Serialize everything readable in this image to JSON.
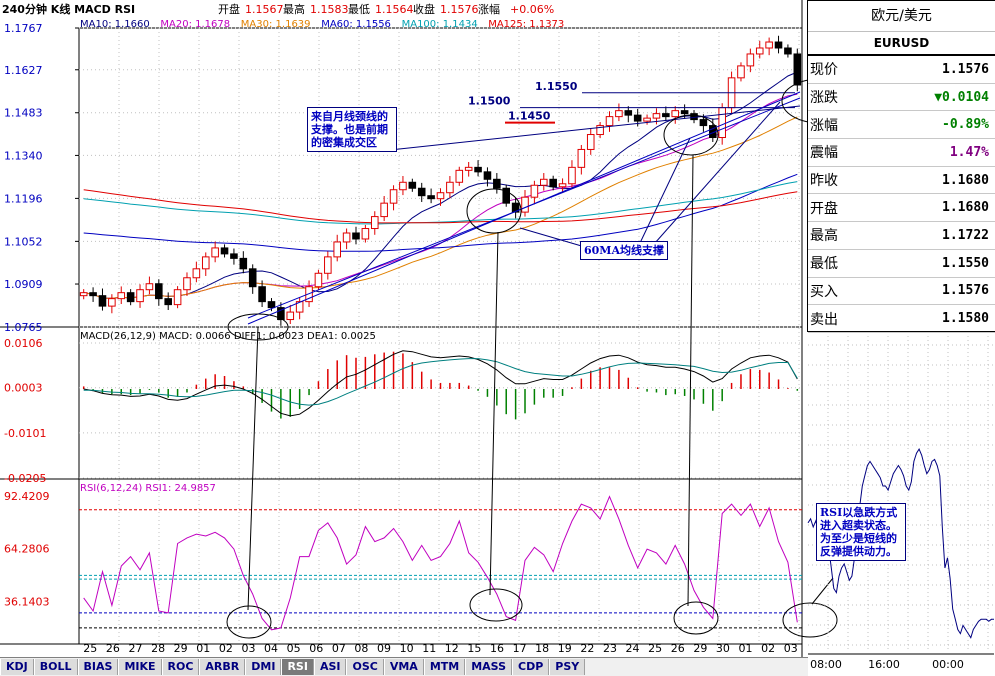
{
  "header": {
    "title": "240分钟 K线 MACD RSI",
    "open_label": "开盘",
    "open": "1.1567",
    "high_label": "最高",
    "high": "1.1583",
    "low_label": "最低",
    "low": "1.1564",
    "close_label": "收盘",
    "close": "1.1576",
    "change_label": "涨幅",
    "change": "+0.06%"
  },
  "ma_legend": [
    {
      "label": "MA10: 1.1660",
      "color": "#000080"
    },
    {
      "label": "MA20: 1.1678",
      "color": "#c000c0"
    },
    {
      "label": "MA30: 1.1639",
      "color": "#e08000"
    },
    {
      "label": "MA60: 1.1556",
      "color": "#0000c0"
    },
    {
      "label": "MA100: 1.1434",
      "color": "#00a0b0"
    },
    {
      "label": "MA125: 1.1373",
      "color": "#e00000"
    }
  ],
  "macd_legend": "MACD(26,12,9) MACD: 0.0066  DIFF1: 0.0023  DEA1: 0.0025",
  "rsi_legend": "RSI(6,12,24) RSI1: 24.9857",
  "colors": {
    "up": "#e00000",
    "down": "#000000",
    "accent": "#0000c0",
    "grid": "#c0c0c0",
    "axis_text": "#0000c0",
    "rsi_line": "#c000c0"
  },
  "chart_data": [
    {
      "type": "candlestick",
      "ylim": [
        1.0765,
        1.1767
      ],
      "yticks": [
        "1.1767",
        "1.1627",
        "1.1483",
        "1.1340",
        "1.1196",
        "1.1052",
        "1.0909",
        "1.0765"
      ],
      "x_labels": [
        "25",
        "26",
        "27",
        "28",
        "29",
        "01",
        "02",
        "03",
        "04",
        "05",
        "06",
        "07",
        "08",
        "09",
        "10",
        "11",
        "12",
        "15",
        "16",
        "17",
        "18",
        "19",
        "22",
        "23",
        "24",
        "25",
        "26",
        "29",
        "30",
        "01",
        "02",
        "03"
      ],
      "levels": [
        {
          "label": "1.1550",
          "value": 1.155
        },
        {
          "label": "1.1500",
          "value": 1.15
        },
        {
          "label": "1.1450",
          "value": 1.145
        }
      ],
      "annotations": [
        "来自月线颈线的支撑。也是前期的密集成交区",
        "60MA均线支撑"
      ],
      "closes": [
        1.088,
        1.087,
        1.0835,
        1.086,
        1.088,
        1.085,
        1.089,
        1.091,
        1.086,
        1.084,
        1.089,
        1.093,
        1.096,
        1.1,
        1.103,
        1.101,
        1.0995,
        1.096,
        1.09,
        1.085,
        1.083,
        1.079,
        1.0815,
        1.085,
        1.09,
        1.0945,
        1.1,
        1.105,
        1.108,
        1.106,
        1.1095,
        1.1135,
        1.118,
        1.1225,
        1.125,
        1.123,
        1.1205,
        1.1195,
        1.1215,
        1.125,
        1.129,
        1.13,
        1.1285,
        1.126,
        1.123,
        1.118,
        1.115,
        1.12,
        1.124,
        1.126,
        1.1235,
        1.1245,
        1.13,
        1.136,
        1.141,
        1.144,
        1.147,
        1.149,
        1.1475,
        1.1455,
        1.1465,
        1.148,
        1.147,
        1.149,
        1.148,
        1.146,
        1.144,
        1.14,
        1.15,
        1.16,
        1.164,
        1.168,
        1.17,
        1.172,
        1.17,
        1.168,
        1.1576
      ]
    },
    {
      "type": "bar_line",
      "name": "MACD",
      "ylim": [
        -0.0205,
        0.0106
      ],
      "yticks": [
        "0.0106",
        "0.0003",
        "-0.0101",
        "-0.0205"
      ],
      "diff": [
        0.0,
        -0.0004,
        -0.001,
        -0.0013,
        -0.0014,
        -0.0017,
        -0.0016,
        -0.0012,
        -0.0016,
        -0.0024,
        -0.0026,
        -0.0022,
        -0.0012,
        -0.0002,
        0.0007,
        0.0009,
        0.0006,
        0.0,
        -0.001,
        -0.0024,
        -0.004,
        -0.0056,
        -0.0062,
        -0.0058,
        -0.0044,
        -0.0026,
        -0.0006,
        0.0012,
        0.0028,
        0.0034,
        0.0044,
        0.0056,
        0.0068,
        0.008,
        0.0088,
        0.0086,
        0.008,
        0.0074,
        0.0072,
        0.0074,
        0.0076,
        0.0074,
        0.0068,
        0.0058,
        0.0044,
        0.0026,
        0.0012,
        0.0012,
        0.0018,
        0.0024,
        0.0022,
        0.0022,
        0.0032,
        0.0046,
        0.006,
        0.007,
        0.0076,
        0.0078,
        0.0072,
        0.0062,
        0.0056,
        0.0054,
        0.005,
        0.005,
        0.0046,
        0.004,
        0.003,
        0.0016,
        0.0024,
        0.0046,
        0.006,
        0.0072,
        0.0076,
        0.0078,
        0.0072,
        0.0062,
        0.0023
      ],
      "dea": [
        -0.0003,
        -0.0003,
        -0.0005,
        -0.0007,
        -0.0008,
        -0.001,
        -0.0011,
        -0.0011,
        -0.0012,
        -0.0014,
        -0.0017,
        -0.0018,
        -0.0017,
        -0.0014,
        -0.001,
        -0.0006,
        -0.0003,
        -0.0003,
        -0.0004,
        -0.0008,
        -0.0014,
        -0.0022,
        -0.003,
        -0.0035,
        -0.0037,
        -0.0035,
        -0.0029,
        -0.0021,
        -0.0011,
        -0.0002,
        0.0007,
        0.0016,
        0.0026,
        0.0037,
        0.0047,
        0.0055,
        0.006,
        0.0063,
        0.0065,
        0.0067,
        0.0069,
        0.007,
        0.007,
        0.0067,
        0.0063,
        0.0055,
        0.0047,
        0.004,
        0.0036,
        0.0034,
        0.0032,
        0.003,
        0.003,
        0.0034,
        0.0039,
        0.0045,
        0.0051,
        0.0056,
        0.0059,
        0.006,
        0.0059,
        0.0058,
        0.0057,
        0.0056,
        0.0054,
        0.0052,
        0.0047,
        0.0041,
        0.0038,
        0.0039,
        0.0043,
        0.0049,
        0.0054,
        0.0059,
        0.0061,
        0.0061,
        0.0025
      ]
    },
    {
      "type": "line",
      "name": "RSI",
      "ylim": [
        15.0,
        95.0
      ],
      "yticks": [
        "92.4209",
        "64.2806",
        "36.1403"
      ],
      "values": [
        38,
        31,
        52,
        34,
        55,
        60,
        53,
        62,
        31,
        30,
        67,
        70,
        72,
        71,
        73,
        70,
        64,
        50,
        40,
        27,
        21,
        22,
        38,
        60,
        60,
        74,
        78,
        70,
        56,
        61,
        76,
        68,
        70,
        75,
        68,
        58,
        66,
        58,
        60,
        67,
        79,
        62,
        57,
        49,
        40,
        28,
        26,
        58,
        65,
        61,
        52,
        67,
        79,
        88,
        86,
        80,
        92,
        80,
        66,
        54,
        64,
        62,
        56,
        66,
        56,
        42,
        33,
        27,
        83,
        88,
        82,
        88,
        76,
        86,
        68,
        57,
        25
      ]
    }
  ],
  "side_panel": {
    "title": "欧元/美元",
    "symbol": "EURUSD",
    "rows": [
      {
        "label": "现价",
        "value": "1.1576",
        "cls": "v-black"
      },
      {
        "label": "涨跌",
        "value": "▼0.0104",
        "cls": "v-green"
      },
      {
        "label": "涨幅",
        "value": "-0.89%",
        "cls": "v-green"
      },
      {
        "label": "震幅",
        "value": "1.47%",
        "cls": "v-purple"
      },
      {
        "label": "昨收",
        "value": "1.1680",
        "cls": "v-black"
      },
      {
        "label": "开盘",
        "value": "1.1680",
        "cls": "v-black"
      },
      {
        "label": "最高",
        "value": "1.1722",
        "cls": "v-black"
      },
      {
        "label": "最低",
        "value": "1.1550",
        "cls": "v-black"
      },
      {
        "label": "买入",
        "value": "1.1576",
        "cls": "v-black"
      },
      {
        "label": "卖出",
        "value": "1.1580",
        "cls": "v-black"
      }
    ]
  },
  "mini_chart": {
    "x_labels": [
      "08:00",
      "16:00",
      "00:00"
    ],
    "values": [
      0.62,
      0.64,
      0.6,
      0.63,
      0.58,
      0.56,
      0.52,
      0.52,
      0.5,
      0.4,
      0.3,
      0.28,
      0.36,
      0.4,
      0.42,
      0.38,
      0.34,
      0.36,
      0.45,
      0.55,
      0.7,
      0.8,
      0.85,
      0.9,
      0.92,
      0.9,
      0.88,
      0.86,
      0.84,
      0.8,
      0.8,
      0.78,
      0.82,
      0.86,
      0.88,
      0.9,
      0.88,
      0.85,
      0.8,
      0.78,
      0.82,
      0.92,
      0.96,
      0.98,
      0.95,
      0.9,
      0.86,
      0.88,
      0.92,
      0.93,
      0.9,
      0.85,
      0.6,
      0.4,
      0.45,
      0.35,
      0.2,
      0.15,
      0.1,
      0.08,
      0.12,
      0.1,
      0.08,
      0.06,
      0.1,
      0.12,
      0.14,
      0.15,
      0.15,
      0.15,
      0.14,
      0.15,
      0.15
    ]
  },
  "rsi_note": "RSI以急跌方式进入超卖状态。为至少是短线的反弹提供动力。",
  "tabs": [
    "KDJ",
    "BOLL",
    "BIAS",
    "MIKE",
    "ROC",
    "ARBR",
    "DMI",
    "RSI",
    "ASI",
    "OSC",
    "VMA",
    "MTM",
    "MASS",
    "CDP",
    "PSY"
  ],
  "active_tab": "RSI"
}
